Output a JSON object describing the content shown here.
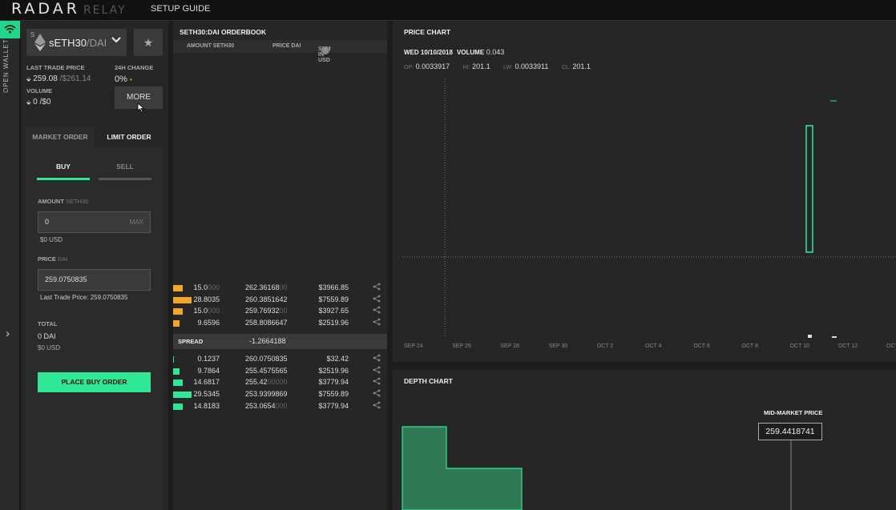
{
  "header": {
    "logo_main": "RADAR",
    "logo_sub": "RELAY",
    "nav_setup": "SETUP GUIDE"
  },
  "wallet": {
    "label": "OPEN WALLET",
    "accent": "#1fd68a"
  },
  "market": {
    "pair_base": "sETH30",
    "pair_sep": "/",
    "pair_quote": "DAI",
    "token_prefix": "S",
    "last_trade_label": "LAST TRADE PRICE",
    "last_trade_value": "259.08",
    "last_trade_usd": "/$261.14",
    "change_label": "24H CHANGE",
    "change_value": "0%",
    "volume_label": "VOLUME",
    "volume_value": "0",
    "volume_usd": "/$0",
    "more_label": "MORE"
  },
  "order_form": {
    "tabs": [
      "MARKET ORDER",
      "LIMIT ORDER"
    ],
    "active_tab": "LIMIT ORDER",
    "buy_label": "BUY",
    "sell_label": "SELL",
    "amount_label": "AMOUNT",
    "amount_unit": "SETH30",
    "amount_value": "0",
    "amount_max": "MAX",
    "amount_usd": "$0 USD",
    "price_label": "PRICE",
    "price_unit": "DAI",
    "price_value": "259.0750835",
    "last_trade_note": "Last Trade Price: 259.0750835",
    "total_label": "TOTAL",
    "total_value": "0 DAI",
    "total_usd": "$0 USD",
    "place_button": "PLACE BUY ORDER",
    "buy_color": "#2ee895"
  },
  "orderbook": {
    "title": "SETH30:DAI ORDERBOOK",
    "col_amount": "AMOUNT SETH30",
    "col_price": "PRICE DAI",
    "col_sum": "SUM IN USD",
    "asks": [
      {
        "amount": "15.0",
        "amount_dim": "000",
        "price": "262.36168",
        "price_dim": "00",
        "sum": "$3966.85",
        "fill": 0.5
      },
      {
        "amount": "28.8035",
        "amount_dim": "",
        "price": "260.3851642",
        "price_dim": "",
        "sum": "$7559.89",
        "fill": 0.95
      },
      {
        "amount": "15.0",
        "amount_dim": "000",
        "price": "259.76932",
        "price_dim": "00",
        "sum": "$3927.65",
        "fill": 0.5
      },
      {
        "amount": "9.6596",
        "amount_dim": "",
        "price": "258.8086647",
        "price_dim": "",
        "sum": "$2519.96",
        "fill": 0.33
      }
    ],
    "spread_label": "SPREAD",
    "spread_value": "-1.2664188",
    "bids": [
      {
        "amount": "0.1237",
        "amount_dim": "",
        "price": "260.0750835",
        "price_dim": "",
        "sum": "$32.42",
        "fill": 0.02
      },
      {
        "amount": "9.7864",
        "amount_dim": "",
        "price": "255.4575565",
        "price_dim": "",
        "sum": "$2519.96",
        "fill": 0.33
      },
      {
        "amount": "14.6817",
        "amount_dim": "",
        "price": "255.42",
        "price_dim": "00000",
        "sum": "$3779.94",
        "fill": 0.5
      },
      {
        "amount": "29.5345",
        "amount_dim": "",
        "price": "253.9399869",
        "price_dim": "",
        "sum": "$7559.89",
        "fill": 0.95
      },
      {
        "amount": "14.8183",
        "amount_dim": "",
        "price": "253.0654",
        "price_dim": "000",
        "sum": "$3779.94",
        "fill": 0.5
      }
    ],
    "ask_color": "#f5a623",
    "bid_color": "#2ee895"
  },
  "price_chart": {
    "title": "PRICE CHART",
    "date": "WED 10/10/2018",
    "volume_label": "VOLUME",
    "volume_value": "0.043",
    "op_label": "OP:",
    "op_value": "0.0033917",
    "hi_label": "HI:",
    "hi_value": "201.1",
    "lw_label": "LW:",
    "lw_value": "0.0033911",
    "cl_label": "CL:",
    "cl_value": "201.1",
    "x_ticks": [
      "SEP 24",
      "SEP 26",
      "SEP 28",
      "SEP 30",
      "OCT 2",
      "OCT 4",
      "OCT 6",
      "OCT 8",
      "OCT 10",
      "OCT 12",
      "OCT"
    ]
  },
  "depth_chart": {
    "title": "DEPTH CHART",
    "mid_label": "MID-MARKET PRICE",
    "mid_value": "259.4418741"
  }
}
